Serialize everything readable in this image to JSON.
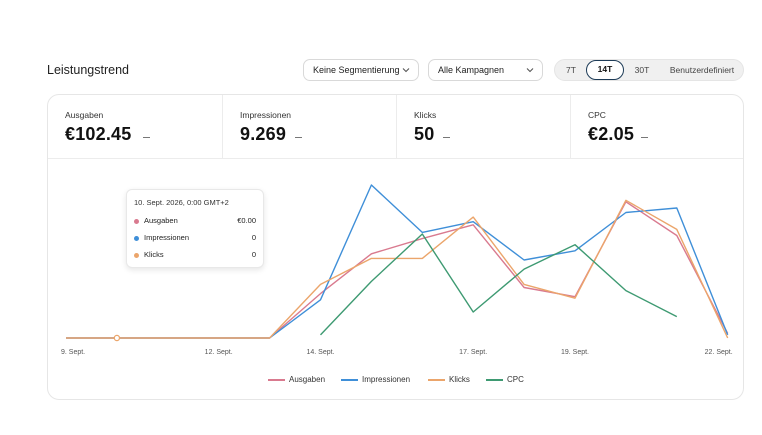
{
  "header": {
    "title": "Leistungstrend",
    "segment_select": "Keine Segmentierung",
    "campaign_select": "Alle Kampagnen",
    "ranges": [
      "7T",
      "14T",
      "30T",
      "Benutzerdefiniert"
    ],
    "active_range": "14T"
  },
  "kpis": [
    {
      "label": "Ausgaben",
      "value": "€102.45"
    },
    {
      "label": "Impressionen",
      "value": "9.269"
    },
    {
      "label": "Klicks",
      "value": "50"
    },
    {
      "label": "CPC",
      "value": "€2.05"
    }
  ],
  "tooltip": {
    "date": "10. Sept. 2026, 0:00 GMT+2",
    "rows": [
      {
        "label": "Ausgaben",
        "value": "€0.00"
      },
      {
        "label": "Impressionen",
        "value": "0"
      },
      {
        "label": "Klicks",
        "value": "0"
      }
    ]
  },
  "colors": {
    "Ausgaben": "#d97a8f",
    "Impressionen": "#3f8fd8",
    "Klicks": "#eba56b",
    "CPC": "#3e9a72"
  },
  "chart_data": {
    "type": "line",
    "x_tick_labels": [
      "9. Sept.",
      "12. Sept.",
      "14. Sept.",
      "17. Sept.",
      "19. Sept.",
      "22. Sept."
    ],
    "x": [
      "9",
      "10",
      "11",
      "12",
      "13",
      "14",
      "15",
      "16",
      "17",
      "18",
      "19",
      "20",
      "21",
      "22"
    ],
    "grid": false,
    "legend_position": "bottom",
    "series": [
      {
        "name": "Ausgaben",
        "values": [
          0,
          0,
          0,
          0,
          0,
          0.29,
          0.55,
          0.65,
          0.74,
          0.33,
          0.27,
          0.89,
          0.67,
          0.03
        ]
      },
      {
        "name": "Impressionen",
        "values": [
          0,
          0,
          0,
          0,
          0,
          0.25,
          1.0,
          0.69,
          0.76,
          0.51,
          0.57,
          0.82,
          0.85,
          0.02
        ]
      },
      {
        "name": "Klicks",
        "values": [
          0,
          0,
          0,
          0,
          0,
          0.35,
          0.52,
          0.52,
          0.79,
          0.35,
          0.26,
          0.9,
          0.71,
          0.0
        ]
      },
      {
        "name": "CPC",
        "values": [
          null,
          null,
          null,
          null,
          null,
          0.02,
          0.37,
          0.68,
          0.17,
          0.45,
          0.61,
          0.31,
          0.14,
          null
        ]
      }
    ],
    "highlighted_x": "10"
  }
}
